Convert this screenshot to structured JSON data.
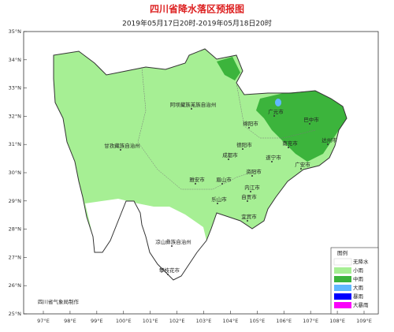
{
  "header": {
    "title": "四川省降水落区预报图",
    "subtitle": "2019年05月17日20时-2019年05月18日20时"
  },
  "axes": {
    "lat_labels": [
      "35°N",
      "34°N",
      "33°N",
      "32°N",
      "31°N",
      "30°N",
      "29°N",
      "28°N",
      "27°N",
      "26°N",
      "25°N"
    ],
    "lon_labels": [
      "97°E",
      "98°E",
      "99°E",
      "100°E",
      "101°E",
      "102°E",
      "103°E",
      "104°E",
      "105°E",
      "106°E",
      "107°E",
      "108°E",
      "109°E"
    ]
  },
  "places": [
    {
      "label": "阿坝藏族羌族自治州"
    },
    {
      "label": "甘孜藏族自治州"
    },
    {
      "label": "广元市"
    },
    {
      "label": "巴中市"
    },
    {
      "label": "绵阳市"
    },
    {
      "label": "德阳市"
    },
    {
      "label": "南充市"
    },
    {
      "label": "达州市"
    },
    {
      "label": "成都市"
    },
    {
      "label": "遂宁市"
    },
    {
      "label": "广安市"
    },
    {
      "label": "雅安市"
    },
    {
      "label": "眉山市"
    },
    {
      "label": "资阳市"
    },
    {
      "label": "内江市"
    },
    {
      "label": "乐山市"
    },
    {
      "label": "自贡市"
    },
    {
      "label": "宜宾市"
    },
    {
      "label": "凉山彝族自治州"
    },
    {
      "label": "攀枝花市"
    }
  ],
  "legend": {
    "title": "图例",
    "items": [
      {
        "label": "无降水",
        "color": "#ffffff"
      },
      {
        "label": "小雨",
        "color": "#a6ef94"
      },
      {
        "label": "中雨",
        "color": "#3cb43c"
      },
      {
        "label": "大雨",
        "color": "#61b8ff"
      },
      {
        "label": "暴雨",
        "color": "#0000fe"
      },
      {
        "label": "大暴雨",
        "color": "#fa00fa"
      }
    ]
  },
  "credit": "四川省气象局制作"
}
